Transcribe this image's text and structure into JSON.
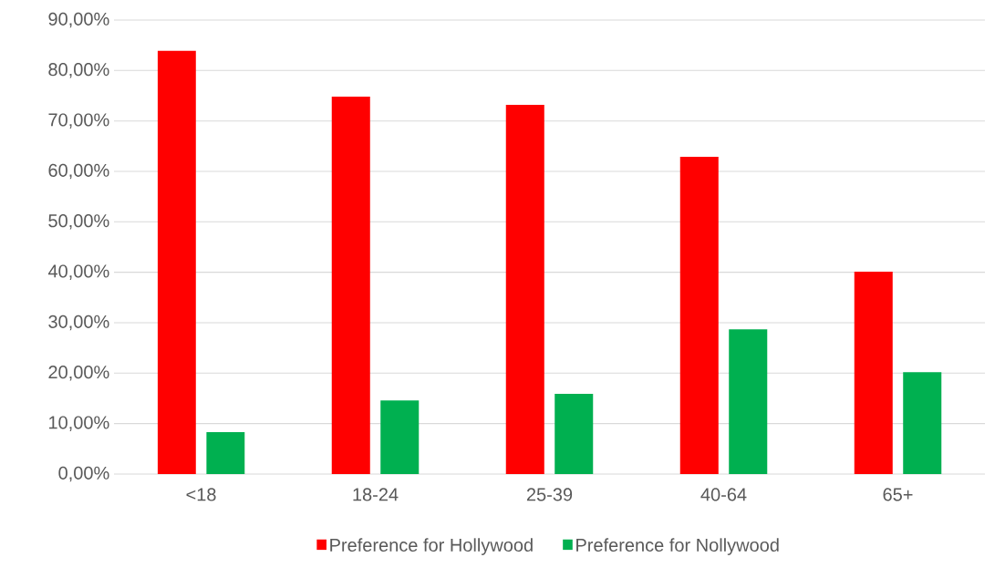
{
  "chart_data": {
    "type": "bar",
    "categories": [
      "<18",
      "18-24",
      "25-39",
      "40-64",
      "65+"
    ],
    "series": [
      {
        "name": "Preference for Hollywood",
        "color": "#ff0000",
        "values": [
          83.9,
          74.8,
          73.2,
          62.9,
          40.1
        ]
      },
      {
        "name": "Preference for Nollywood",
        "color": "#00b050",
        "values": [
          8.3,
          14.6,
          15.9,
          28.7,
          20.2
        ]
      }
    ],
    "ylim": [
      0,
      90
    ],
    "yticks": [
      {
        "value": 0,
        "label": "0,00%"
      },
      {
        "value": 10,
        "label": "10,00%"
      },
      {
        "value": 20,
        "label": "20,00%"
      },
      {
        "value": 30,
        "label": "30,00%"
      },
      {
        "value": 40,
        "label": "40,00%"
      },
      {
        "value": 50,
        "label": "50,00%"
      },
      {
        "value": 60,
        "label": "60,00%"
      },
      {
        "value": 70,
        "label": "70,00%"
      },
      {
        "value": 80,
        "label": "80,00%"
      },
      {
        "value": 90,
        "label": "90,00%"
      }
    ],
    "grid": "y",
    "legend": "bottom"
  }
}
